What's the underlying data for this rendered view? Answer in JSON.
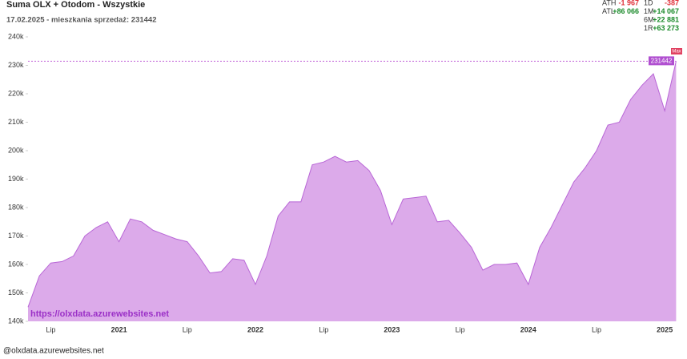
{
  "chart_data": {
    "type": "area",
    "title": "Suma OLX + Otodom - Wszystkie",
    "subtitle": "17.02.2025 - mieszkania sprzedaż: 231442",
    "watermark": "https://olxdata.azurewebsites.net",
    "footer": "@olxdata.azurewebsites.net",
    "max_badge": "Max",
    "stats": [
      {
        "label": "ATH",
        "value": "-1 967"
      },
      {
        "label": "ATL",
        "value": "+86 066"
      },
      {
        "label": "1D",
        "value": "-387"
      },
      {
        "label": "1M",
        "value": "+14 067"
      },
      {
        "label": "6M",
        "value": "+22 881"
      },
      {
        "label": "1R",
        "value": "+63 273"
      }
    ],
    "categories": [
      null,
      null,
      "Lip",
      null,
      null,
      null,
      null,
      null,
      "2021",
      null,
      null,
      null,
      null,
      null,
      "Lip",
      null,
      null,
      null,
      null,
      null,
      "2022",
      null,
      null,
      null,
      null,
      null,
      "Lip",
      null,
      null,
      null,
      null,
      null,
      "2023",
      null,
      null,
      null,
      null,
      null,
      "Lip",
      null,
      null,
      null,
      null,
      null,
      "2024",
      null,
      null,
      null,
      null,
      null,
      "Lip",
      null,
      null,
      null,
      null,
      null,
      "2025",
      null
    ],
    "values": [
      145000,
      156000,
      160500,
      161000,
      163000,
      170000,
      173000,
      175000,
      168000,
      176000,
      175000,
      172000,
      170500,
      169000,
      168000,
      163000,
      157000,
      157500,
      162000,
      161500,
      153000,
      163000,
      177000,
      182000,
      182000,
      195000,
      196000,
      198000,
      196000,
      196500,
      193000,
      186000,
      174000,
      183000,
      183500,
      184000,
      175000,
      175500,
      171000,
      166000,
      158000,
      160000,
      160000,
      160500,
      153000,
      166000,
      173000,
      181000,
      189000,
      194000,
      200000,
      209000,
      210000,
      218000,
      223000,
      227000,
      214000,
      231442
    ],
    "color": "#dcaaea",
    "line_color": "#b866d6",
    "ylim": [
      140000,
      240000
    ],
    "yticks": [
      {
        "value": 140000,
        "label": "140k"
      },
      {
        "value": 150000,
        "label": "150k"
      },
      {
        "value": 160000,
        "label": "160k"
      },
      {
        "value": 170000,
        "label": "170k"
      },
      {
        "value": 180000,
        "label": "180k"
      },
      {
        "value": 190000,
        "label": "190k"
      },
      {
        "value": 200000,
        "label": "200k"
      },
      {
        "value": 210000,
        "label": "210k"
      },
      {
        "value": 220000,
        "label": "220k"
      },
      {
        "value": 230000,
        "label": "230k"
      },
      {
        "value": 240000,
        "label": "240k"
      }
    ],
    "grid": false
  }
}
